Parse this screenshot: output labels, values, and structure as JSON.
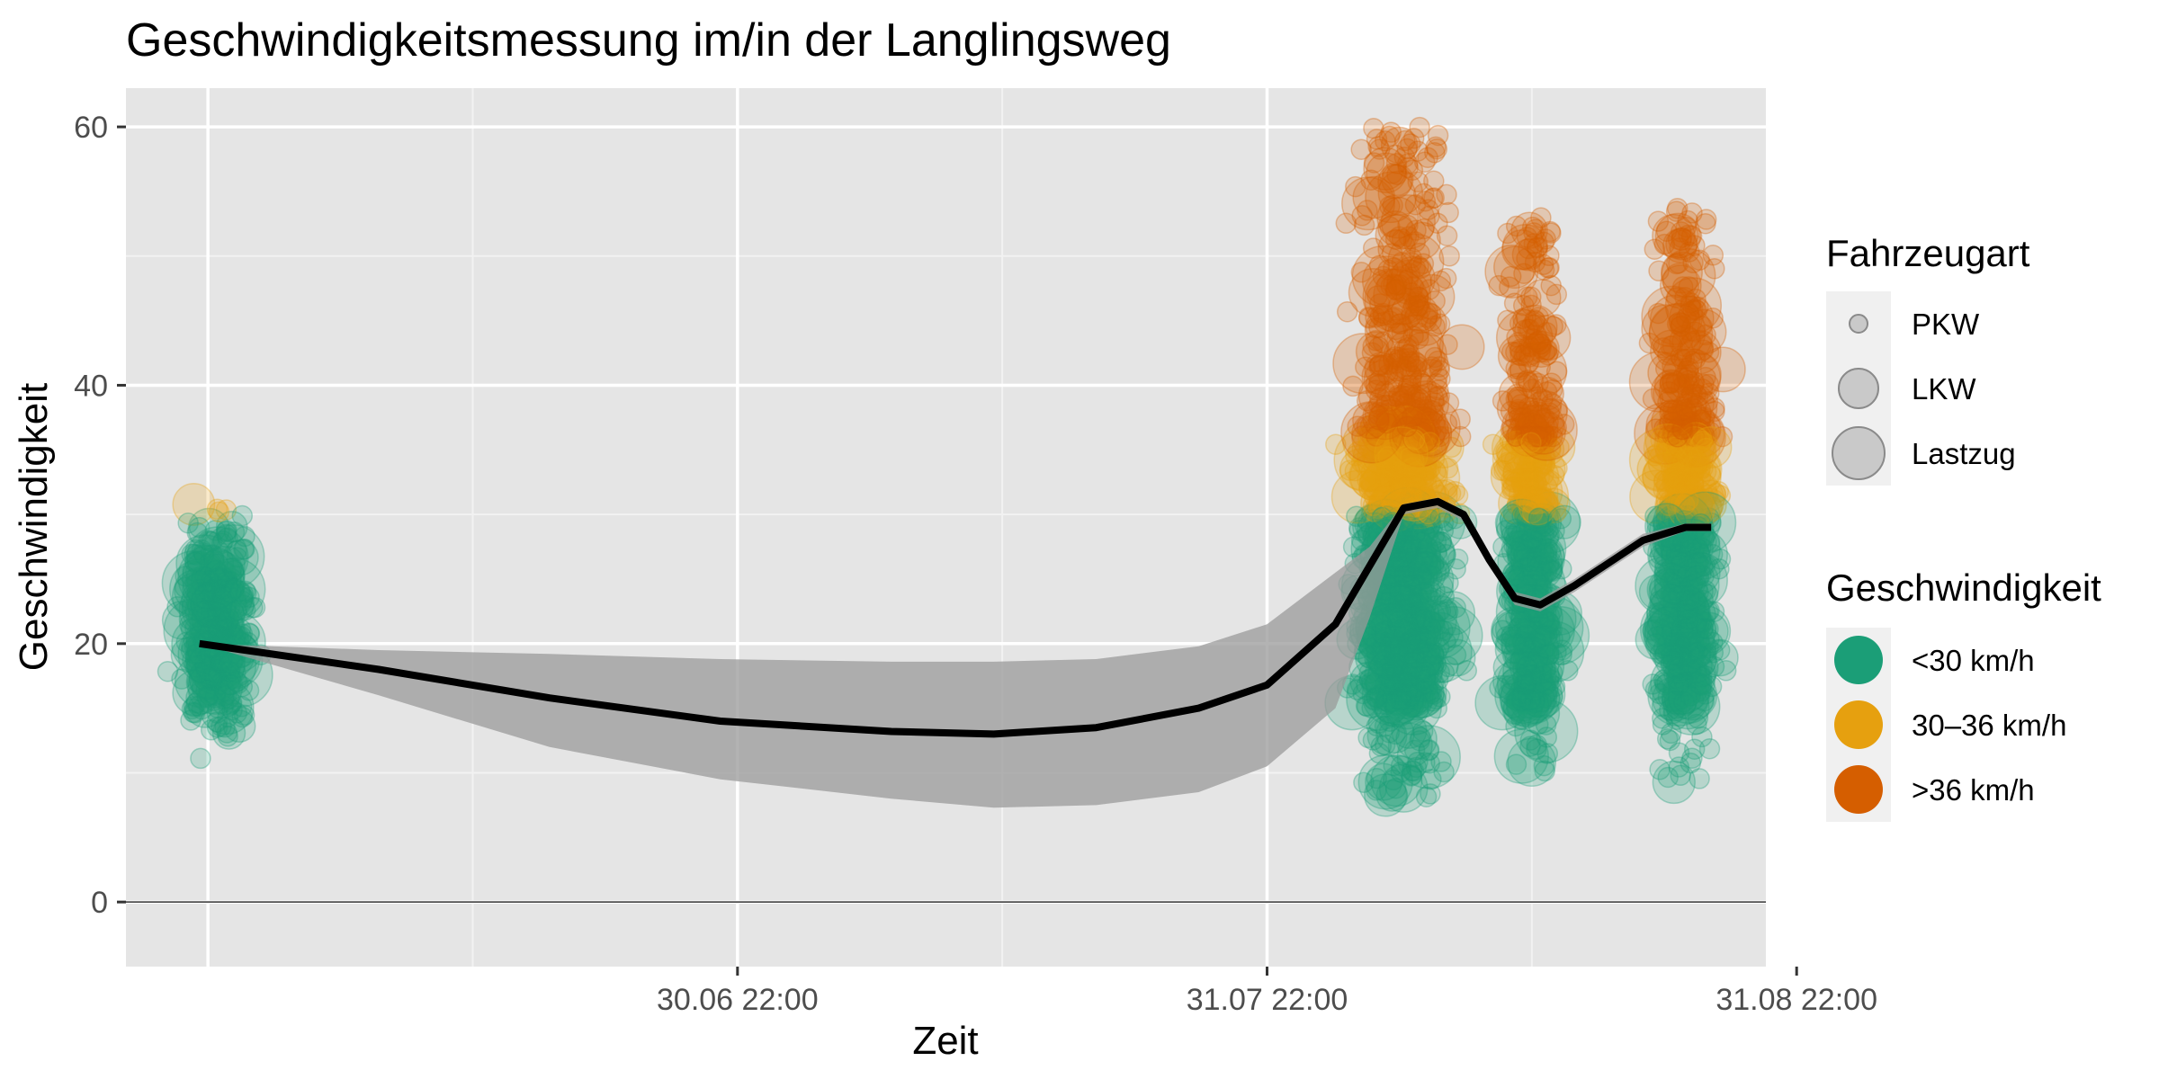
{
  "chart_data": {
    "type": "scatter",
    "title": "Geschwindigkeitsmessung im/in der Langlingsweg",
    "xlabel": "Zeit",
    "ylabel": "Geschwindigkeit",
    "ylim": [
      -5,
      63
    ],
    "y_ticks": [
      0,
      20,
      40,
      60
    ],
    "x_ticks": [
      {
        "label": "30.06 22:00",
        "value": 31
      },
      {
        "label": "31.07 22:00",
        "value": 62
      },
      {
        "label": "31.08 22:00",
        "value": 93
      }
    ],
    "x_minor": [
      15.5,
      46.5,
      77.5
    ],
    "xlim": [
      -4.8,
      91.2
    ],
    "grid": true,
    "legend_position": "right",
    "legends": [
      {
        "title": "Fahrzeugart",
        "kind": "size",
        "entries": [
          {
            "label": "PKW",
            "size": "small"
          },
          {
            "label": "LKW",
            "size": "medium"
          },
          {
            "label": "Lastzug",
            "size": "large"
          }
        ]
      },
      {
        "title": "Geschwindigkeit",
        "kind": "color",
        "entries": [
          {
            "label": "<30 km/h",
            "color": "#1b9e77"
          },
          {
            "label": "30–36 km/h",
            "color": "#e6a00f"
          },
          {
            "label": ">36 km/h",
            "color": "#d55e00"
          }
        ]
      }
    ],
    "clusters": [
      {
        "x_center": 0.5,
        "x_spread": 2.0,
        "count": 420,
        "y_min": 10,
        "y_max": 32
      },
      {
        "x_center": 70.0,
        "x_spread": 2.8,
        "count": 1400,
        "y_min": 8,
        "y_max": 60
      },
      {
        "x_center": 77.5,
        "x_spread": 1.6,
        "count": 720,
        "y_min": 10,
        "y_max": 53
      },
      {
        "x_center": 86.5,
        "x_spread": 1.8,
        "count": 820,
        "y_min": 9,
        "y_max": 54
      }
    ],
    "smooth": {
      "x": [
        -0.5,
        10,
        20,
        30,
        40,
        46,
        52,
        58,
        62,
        66,
        68,
        70,
        72,
        73.5,
        75,
        76.5,
        78,
        80,
        84,
        86.5,
        88
      ],
      "y": [
        20,
        18.0,
        15.8,
        14.0,
        13.2,
        13.0,
        13.5,
        15.0,
        16.8,
        21.5,
        26.0,
        30.5,
        31.0,
        30.0,
        26.5,
        23.5,
        23.0,
        24.5,
        28.0,
        29.0,
        29.0
      ],
      "lo": [
        20,
        16.0,
        12.0,
        9.5,
        8.0,
        7.3,
        7.5,
        8.5,
        10.5,
        15.0,
        22.0,
        30.0,
        30.5,
        29.5,
        26.0,
        23.0,
        22.5,
        24.0,
        27.5,
        28.7,
        28.7
      ],
      "hi": [
        20,
        19.5,
        19.2,
        18.8,
        18.6,
        18.6,
        18.8,
        19.8,
        21.5,
        25.5,
        27.5,
        30.8,
        31.3,
        30.3,
        27.0,
        24.0,
        23.5,
        25.0,
        28.5,
        29.3,
        29.3
      ]
    }
  }
}
